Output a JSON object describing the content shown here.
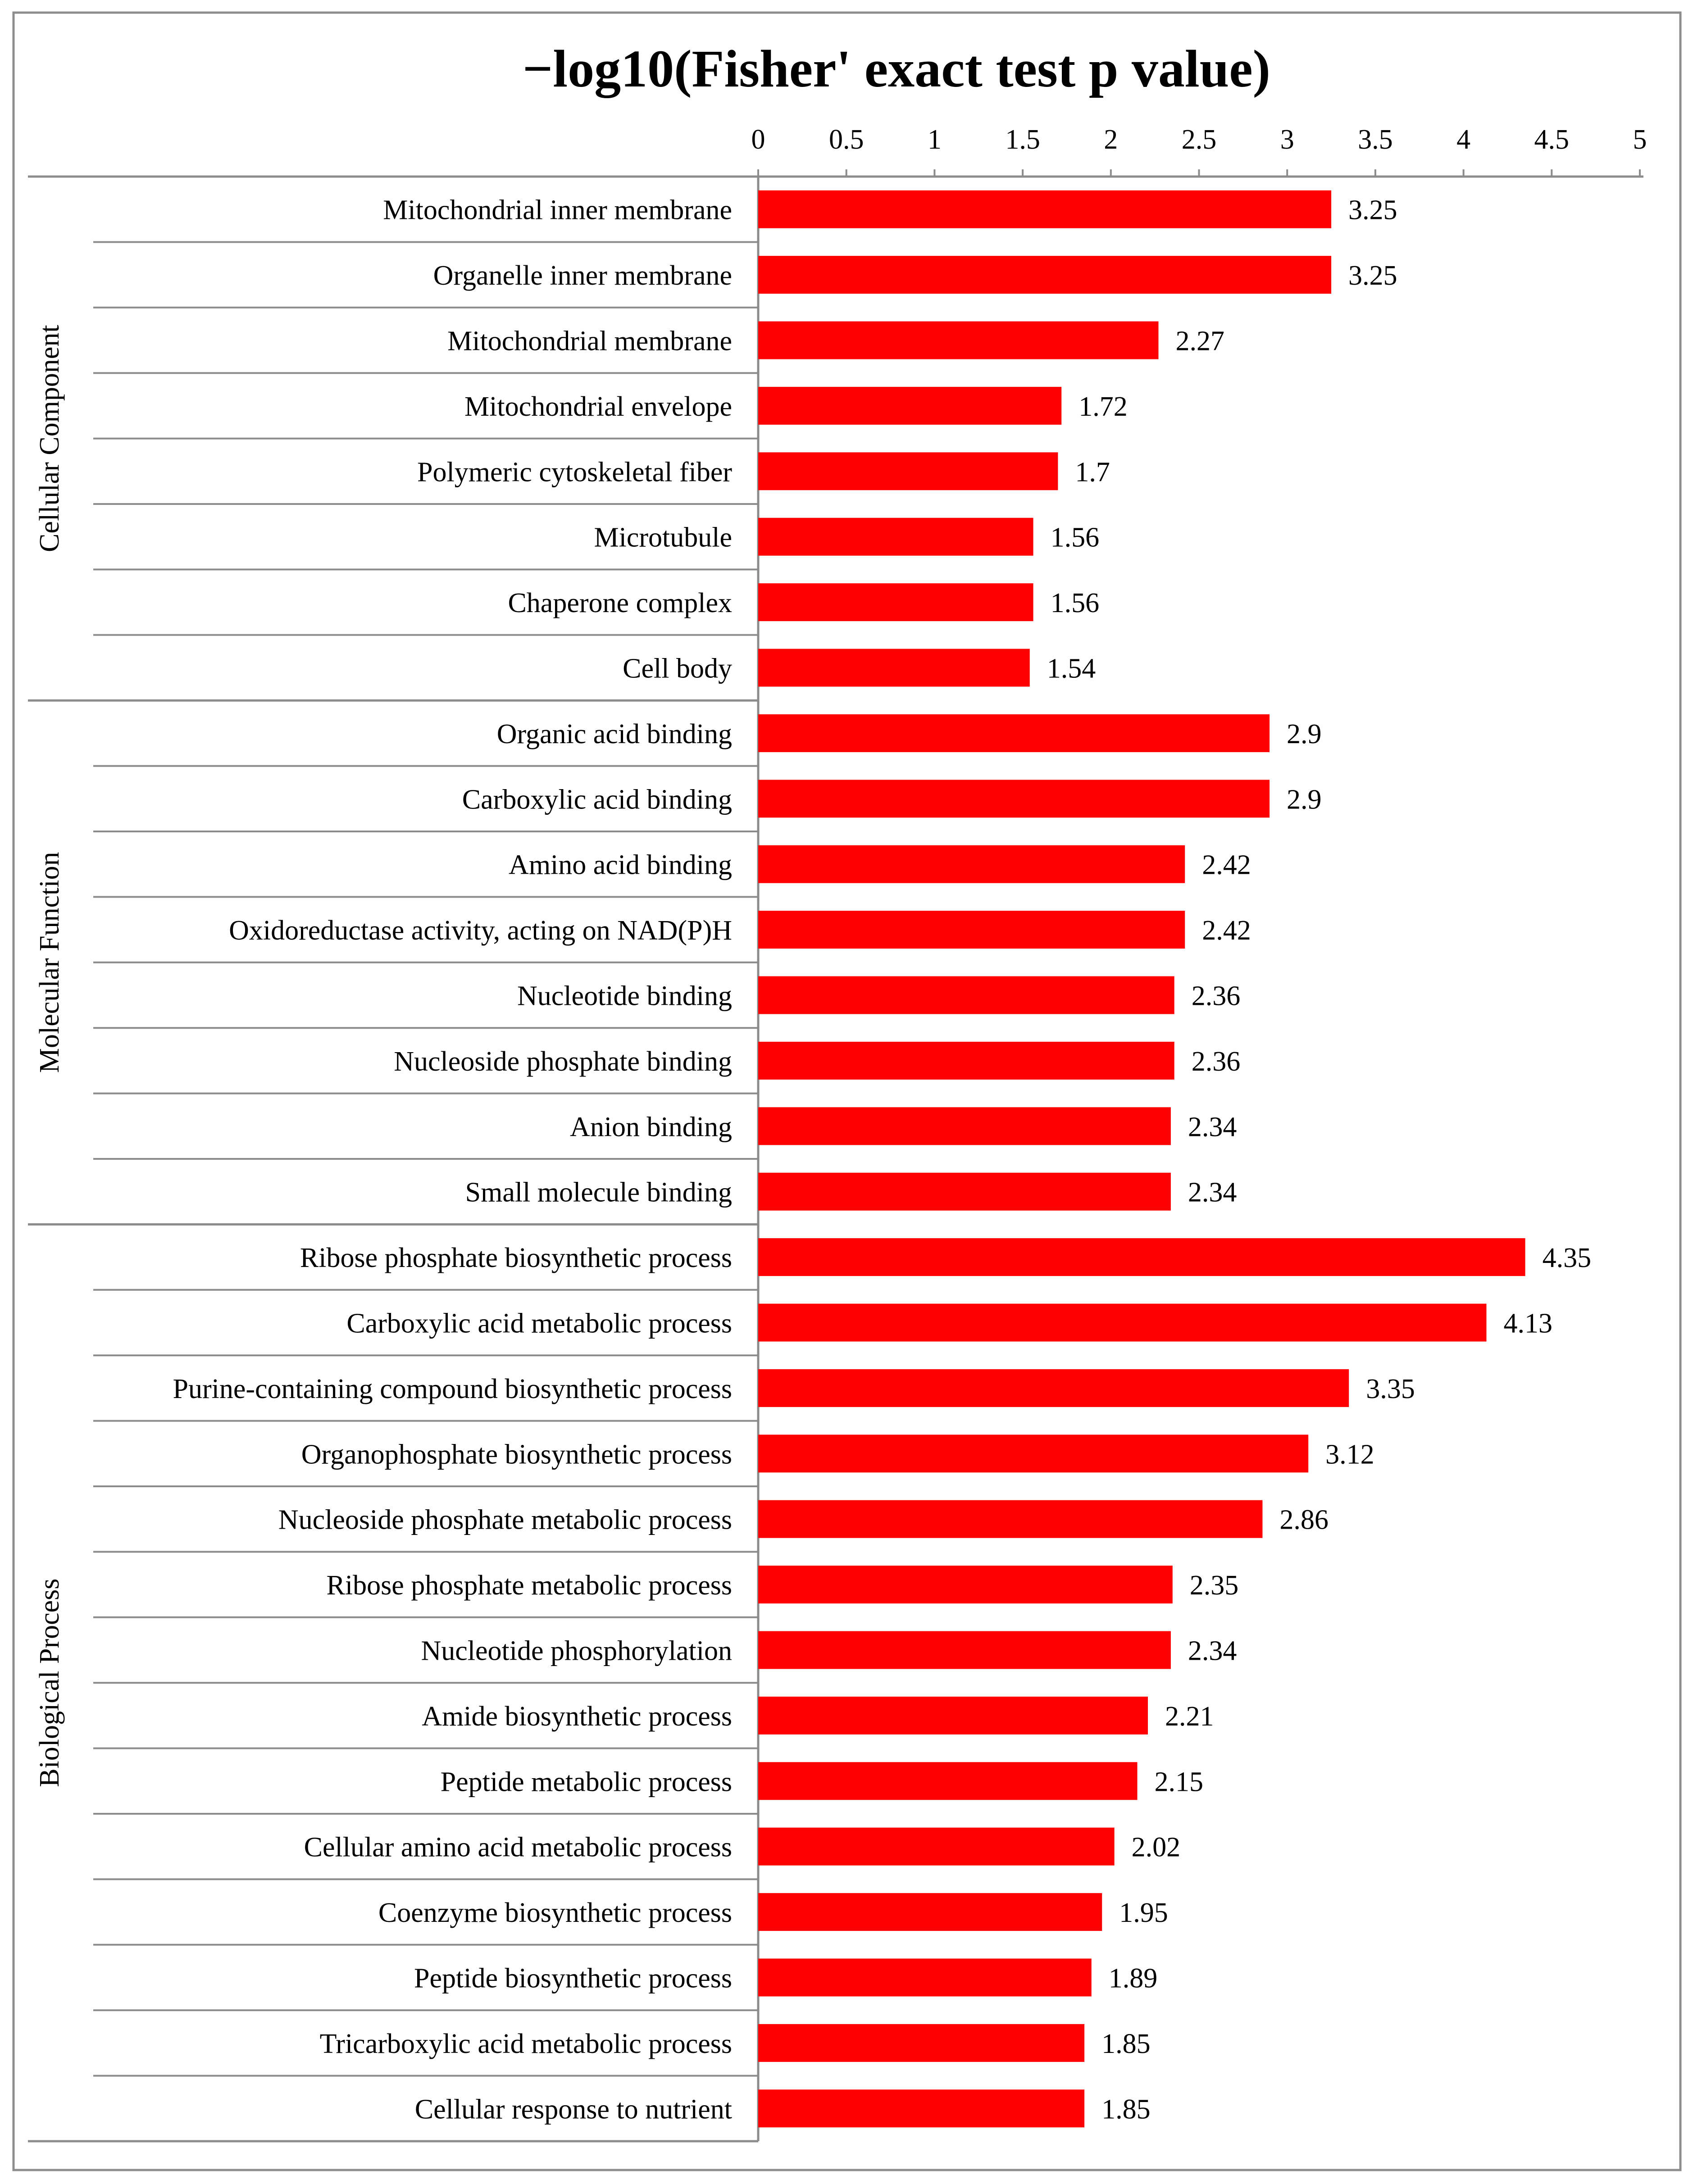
{
  "chart_data": {
    "type": "bar",
    "orientation": "horizontal",
    "title": "−log10(Fisher' exact test p value)",
    "xlim": [
      0,
      5
    ],
    "xticks": [
      "0",
      "0.5",
      "1",
      "1.5",
      "2",
      "2.5",
      "3",
      "3.5",
      "4",
      "4.5",
      "5"
    ],
    "xtick_values": [
      0,
      0.5,
      1,
      1.5,
      2,
      2.5,
      3,
      3.5,
      4,
      4.5,
      5
    ],
    "axis_position": "top",
    "grid": false,
    "legend": "none",
    "bar_color": "#ff0000",
    "groups": [
      {
        "name": "Cellular Component",
        "categories": [
          "Mitochondrial inner membrane",
          "Organelle inner membrane",
          "Mitochondrial membrane",
          "Mitochondrial envelope",
          "Polymeric cytoskeletal fiber",
          "Microtubule",
          "Chaperone complex",
          "Cell body"
        ],
        "values": [
          3.25,
          3.25,
          2.27,
          1.72,
          1.7,
          1.56,
          1.56,
          1.54
        ],
        "labels": [
          "3.25",
          "3.25",
          "2.27",
          "1.72",
          "1.7",
          "1.56",
          "1.56",
          "1.54"
        ]
      },
      {
        "name": "Molecular Function",
        "categories": [
          "Organic acid binding",
          "Carboxylic acid binding",
          "Amino acid binding",
          "Oxidoreductase activity, acting on NAD(P)H",
          "Nucleotide binding",
          "Nucleoside phosphate binding",
          "Anion binding",
          "Small molecule binding"
        ],
        "values": [
          2.9,
          2.9,
          2.42,
          2.42,
          2.36,
          2.36,
          2.34,
          2.34
        ],
        "labels": [
          "2.9",
          "2.9",
          "2.42",
          "2.42",
          "2.36",
          "2.36",
          "2.34",
          "2.34"
        ]
      },
      {
        "name": "Biological Process",
        "categories": [
          "Ribose phosphate biosynthetic process",
          "Carboxylic acid metabolic process",
          "Purine-containing compound biosynthetic process",
          "Organophosphate biosynthetic process",
          "Nucleoside phosphate metabolic process",
          "Ribose phosphate metabolic process",
          "Nucleotide phosphorylation",
          "Amide biosynthetic process",
          "Peptide metabolic process",
          "Cellular amino acid metabolic process",
          "Coenzyme biosynthetic process",
          "Peptide biosynthetic process",
          "Tricarboxylic acid metabolic process",
          "Cellular response to nutrient"
        ],
        "values": [
          4.35,
          4.13,
          3.35,
          3.12,
          2.86,
          2.35,
          2.34,
          2.21,
          2.15,
          2.02,
          1.95,
          1.89,
          1.85,
          1.85
        ],
        "labels": [
          "4.35",
          "4.13",
          "3.35",
          "3.12",
          "2.86",
          "2.35",
          "2.34",
          "2.21",
          "2.15",
          "2.02",
          "1.95",
          "1.89",
          "1.85",
          "1.85"
        ]
      }
    ]
  }
}
